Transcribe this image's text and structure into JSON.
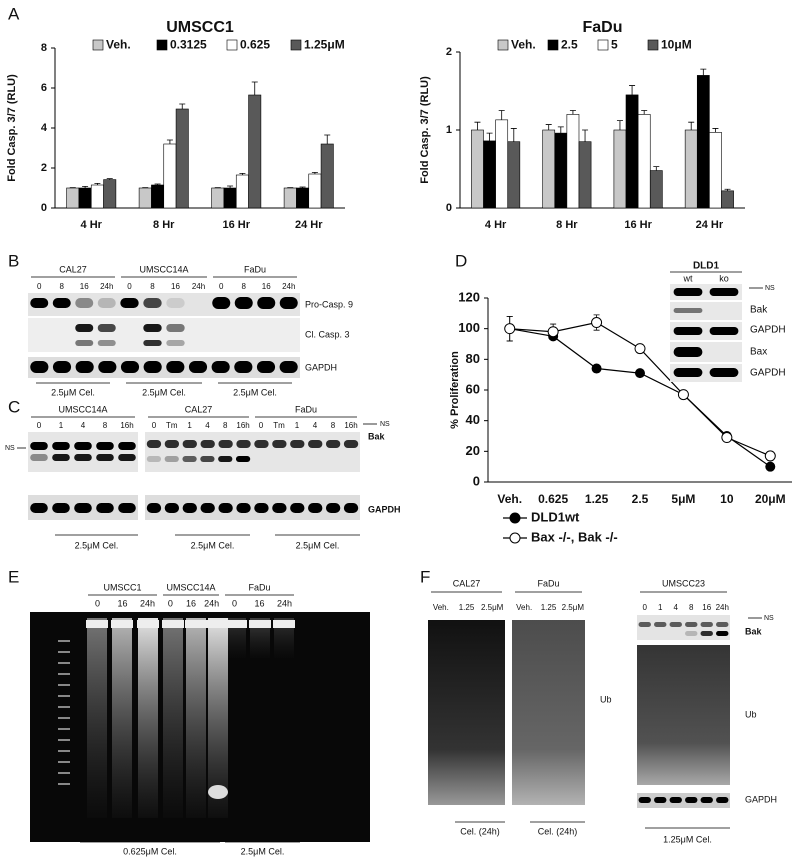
{
  "letters": [
    "A",
    "B",
    "C",
    "D",
    "E",
    "F"
  ],
  "chart_data": [
    {
      "type": "bar",
      "title": "UMSCC1",
      "y_label": "Fold Casp. 3/7 (RLU)",
      "categories": [
        "4 Hr",
        "8 Hr",
        "16 Hr",
        "24 Hr"
      ],
      "ylim": [
        0,
        8
      ],
      "yticks": [
        0,
        2,
        4,
        6,
        8
      ],
      "series": [
        {
          "name": "Veh.",
          "color": "#c8c8c8",
          "values": [
            1,
            1,
            1,
            1
          ],
          "errors": [
            0.02,
            0.02,
            0.02,
            0.02
          ]
        },
        {
          "name": "0.3125",
          "color": "#000000",
          "values": [
            1.0,
            1.15,
            1.0,
            1.0
          ],
          "errors": [
            0.08,
            0.05,
            0.1,
            0.05
          ]
        },
        {
          "name": "0.625",
          "color": "#ffffff",
          "values": [
            1.15,
            3.2,
            1.65,
            1.7
          ],
          "errors": [
            0.08,
            0.2,
            0.08,
            0.08
          ]
        },
        {
          "name": "1.25μM",
          "color": "#595959",
          "values": [
            1.42,
            4.95,
            5.65,
            3.2
          ],
          "errors": [
            0.05,
            0.25,
            0.65,
            0.45
          ]
        }
      ]
    },
    {
      "type": "bar",
      "title": "FaDu",
      "y_label": "Fold Casp. 3/7 (RLU)",
      "categories": [
        "4 Hr",
        "8 Hr",
        "16 Hr",
        "24 Hr"
      ],
      "ylim": [
        0,
        2
      ],
      "yticks": [
        0,
        1,
        2
      ],
      "series": [
        {
          "name": "Veh.",
          "color": "#c8c8c8",
          "values": [
            1,
            1,
            1,
            1
          ],
          "errors": [
            0.1,
            0.07,
            0.12,
            0.1
          ]
        },
        {
          "name": "2.5",
          "color": "#000000",
          "values": [
            0.86,
            0.96,
            1.45,
            1.7
          ],
          "errors": [
            0.1,
            0.08,
            0.12,
            0.08
          ]
        },
        {
          "name": "5",
          "color": "#ffffff",
          "values": [
            1.13,
            1.2,
            1.2,
            0.97
          ],
          "errors": [
            0.12,
            0.05,
            0.05,
            0.05
          ]
        },
        {
          "name": "10μM",
          "color": "#595959",
          "values": [
            0.85,
            0.85,
            0.48,
            0.22
          ],
          "errors": [
            0.17,
            0.15,
            0.05,
            0.02
          ]
        }
      ]
    },
    {
      "type": "line",
      "y_label": "% Proliferation",
      "categories": [
        "Veh.",
        "0.625",
        "1.25",
        "2.5",
        "5μM",
        "10",
        "20μM"
      ],
      "ylim": [
        0,
        120
      ],
      "yticks": [
        0,
        20,
        40,
        60,
        80,
        100,
        120
      ],
      "series": [
        {
          "name": "DLD1wt",
          "color": "#000000",
          "values": [
            100,
            95,
            74,
            71,
            57,
            30,
            10
          ],
          "errors": [
            8,
            2,
            1,
            1,
            1,
            1,
            1
          ]
        },
        {
          "name": "Bax -/-, Bak -/-",
          "color": "#ffffff",
          "values": [
            100,
            98,
            104,
            87,
            57,
            29,
            17
          ],
          "errors": [
            8,
            5,
            5,
            2,
            1,
            1,
            1
          ]
        }
      ]
    }
  ],
  "blot_B": {
    "cell_lines": [
      "CAL27",
      "UMSCC14A",
      "FaDu"
    ],
    "lanes": [
      [
        "0",
        "8",
        "16",
        "24h"
      ],
      [
        "0",
        "8",
        "16",
        "24h"
      ],
      [
        "0",
        "8",
        "16",
        "24h"
      ]
    ],
    "rows": [
      "Pro-Casp. 9",
      "Cl. Casp. 3",
      "GAPDH"
    ],
    "treatments": [
      "2.5μM Cel.",
      "2.5μM Cel.",
      "2.5μM Cel."
    ]
  },
  "blot_C": {
    "cell_lines": [
      "UMSCC14A",
      "CAL27",
      "FaDu"
    ],
    "lanes": [
      [
        "0",
        "1",
        "4",
        "8",
        "16h"
      ],
      [
        "0",
        "Tm",
        "1",
        "4",
        "8",
        "16h"
      ],
      [
        "0",
        "Tm",
        "1",
        "4",
        "8",
        "16h"
      ]
    ],
    "ns_left": "NS",
    "ns_right": "NS",
    "rows": [
      "Bak",
      "GAPDH"
    ],
    "treatments": [
      "2.5μM Cel.",
      "2.5μM Cel.",
      "2.5μM Cel."
    ]
  },
  "inset_D": {
    "cell_line": "DLD1",
    "lanes": [
      "wt",
      "ko"
    ],
    "ns": "NS",
    "rows": [
      "Bak",
      "GAPDH",
      "Bax",
      "GAPDH"
    ]
  },
  "gel_E": {
    "cell_lines": [
      "UMSCC1",
      "UMSCC14A",
      "FaDu"
    ],
    "lanes": [
      [
        "0",
        "16",
        "24h"
      ],
      [
        "0",
        "16",
        "24h"
      ],
      [
        "0",
        "16",
        "24h"
      ]
    ],
    "treatments": [
      "0.625μM Cel.",
      "2.5μM Cel."
    ]
  },
  "blot_F": {
    "cell_lines": [
      "CAL27",
      "FaDu",
      "UMSCC23"
    ],
    "lanes": [
      [
        "Veh.",
        "1.25",
        "2.5μM"
      ],
      [
        "Veh.",
        "1.25",
        "2.5μM"
      ],
      [
        "0",
        "1",
        "4",
        "8",
        "16",
        "24h"
      ]
    ],
    "ub_left": "Ub",
    "ns": "NS",
    "rows": [
      "Bak",
      "Ub",
      "GAPDH"
    ],
    "treatments": [
      "Cel. (24h)",
      "Cel. (24h)",
      "1.25μM Cel."
    ]
  }
}
